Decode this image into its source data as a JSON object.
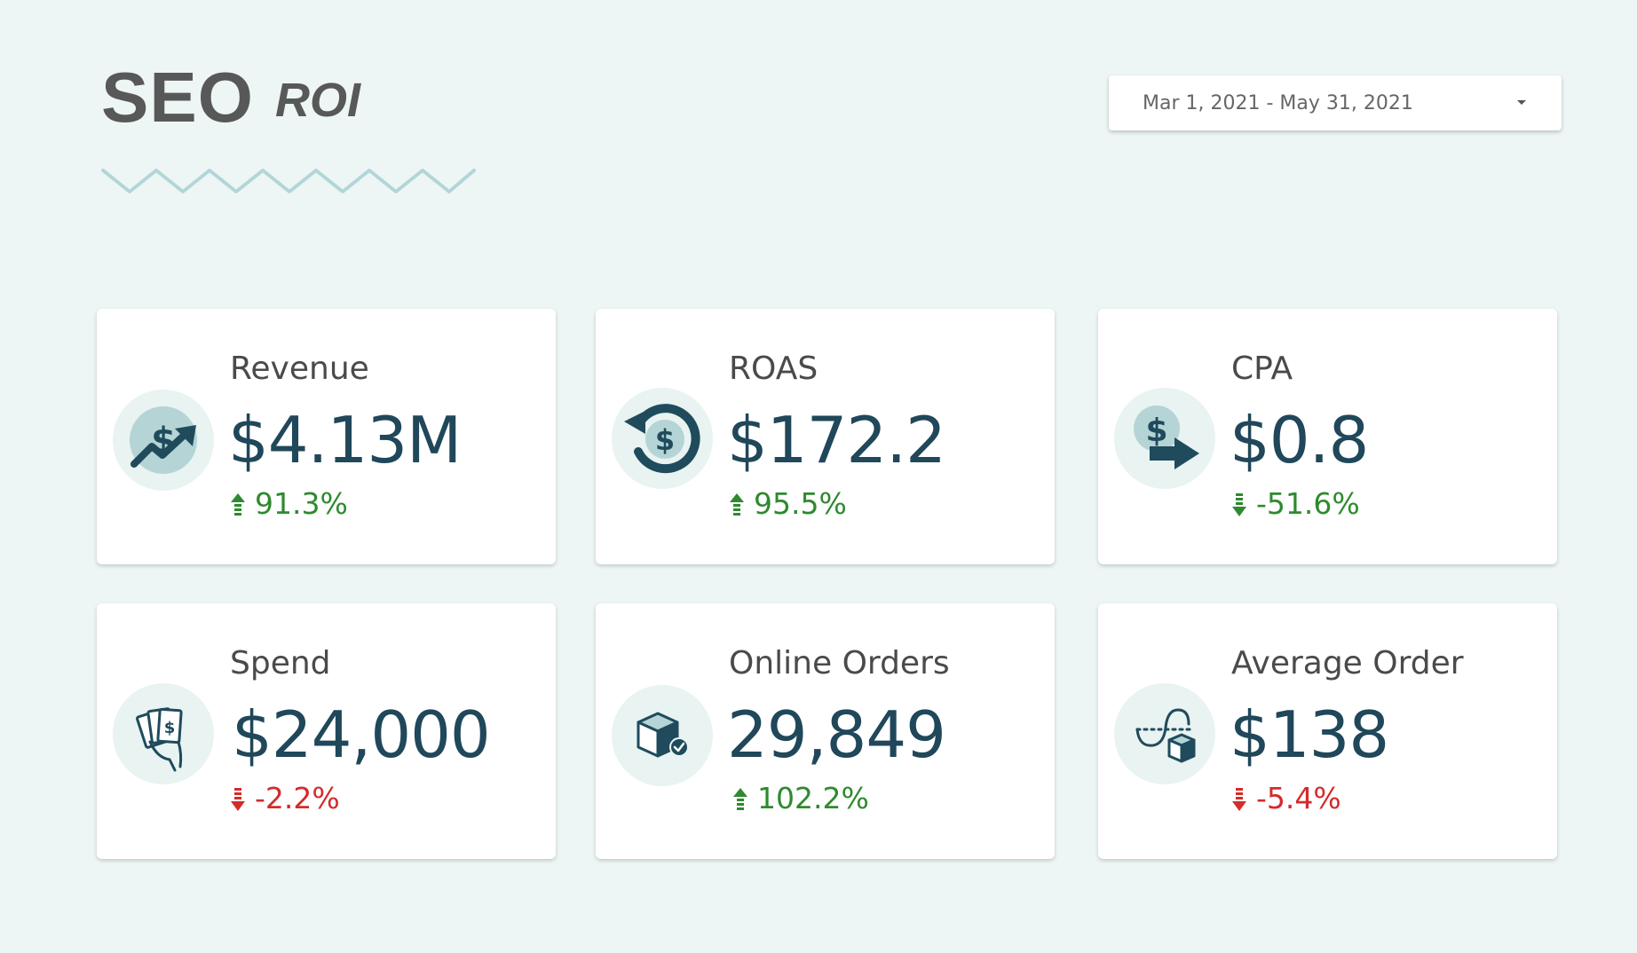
{
  "header": {
    "title": "SEO",
    "subtitle": "ROI"
  },
  "date_range": {
    "label": "Mar 1, 2021 - May 31, 2021"
  },
  "colors": {
    "background": "#edf6f5",
    "value_text": "#20475a",
    "icon_dark": "#1f4b5c",
    "icon_light": "#b5d4d5",
    "positive": "#2e8a2e",
    "negative": "#d42b2b",
    "zigzag": "#b2d6d7"
  },
  "metrics": [
    {
      "label": "Revenue",
      "value": "$4.13M",
      "delta": "91.3%",
      "direction": "up",
      "icon": "revenue-growth-icon"
    },
    {
      "label": "ROAS",
      "value": "$172.2",
      "delta": "95.5%",
      "direction": "up",
      "icon": "dollar-return-icon"
    },
    {
      "label": "CPA",
      "value": "$0.8",
      "delta": "-51.6%",
      "direction": "down",
      "icon": "dollar-arrow-icon"
    },
    {
      "label": "Spend",
      "value": "$24,000",
      "delta": "-2.2%",
      "direction": "down",
      "icon": "cash-hand-icon"
    },
    {
      "label": "Online Orders",
      "value": "29,849",
      "delta": "102.2%",
      "direction": "up",
      "icon": "package-check-icon"
    },
    {
      "label": "Average Order",
      "value": "$138",
      "delta": "-5.4%",
      "direction": "down",
      "icon": "order-path-icon"
    }
  ]
}
